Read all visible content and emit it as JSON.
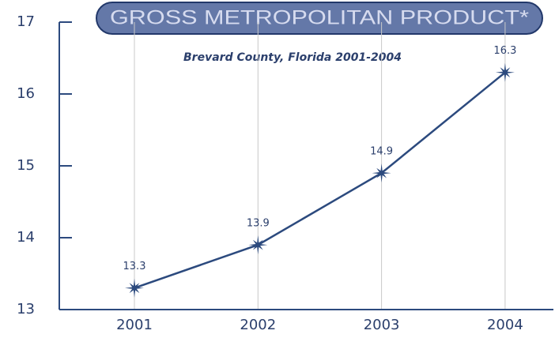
{
  "chart_data": {
    "type": "line",
    "title": "GROSS METROPOLITAN PRODUCT*",
    "subtitle": "Brevard County, Florida 2001-2004",
    "categories": [
      "2001",
      "2002",
      "2003",
      "2004"
    ],
    "values": [
      13.3,
      13.9,
      14.9,
      16.3
    ],
    "color": "#2c4a7e",
    "ylim": [
      13,
      17
    ],
    "yticks": [
      13,
      14,
      15,
      16,
      17
    ],
    "grid": true
  }
}
